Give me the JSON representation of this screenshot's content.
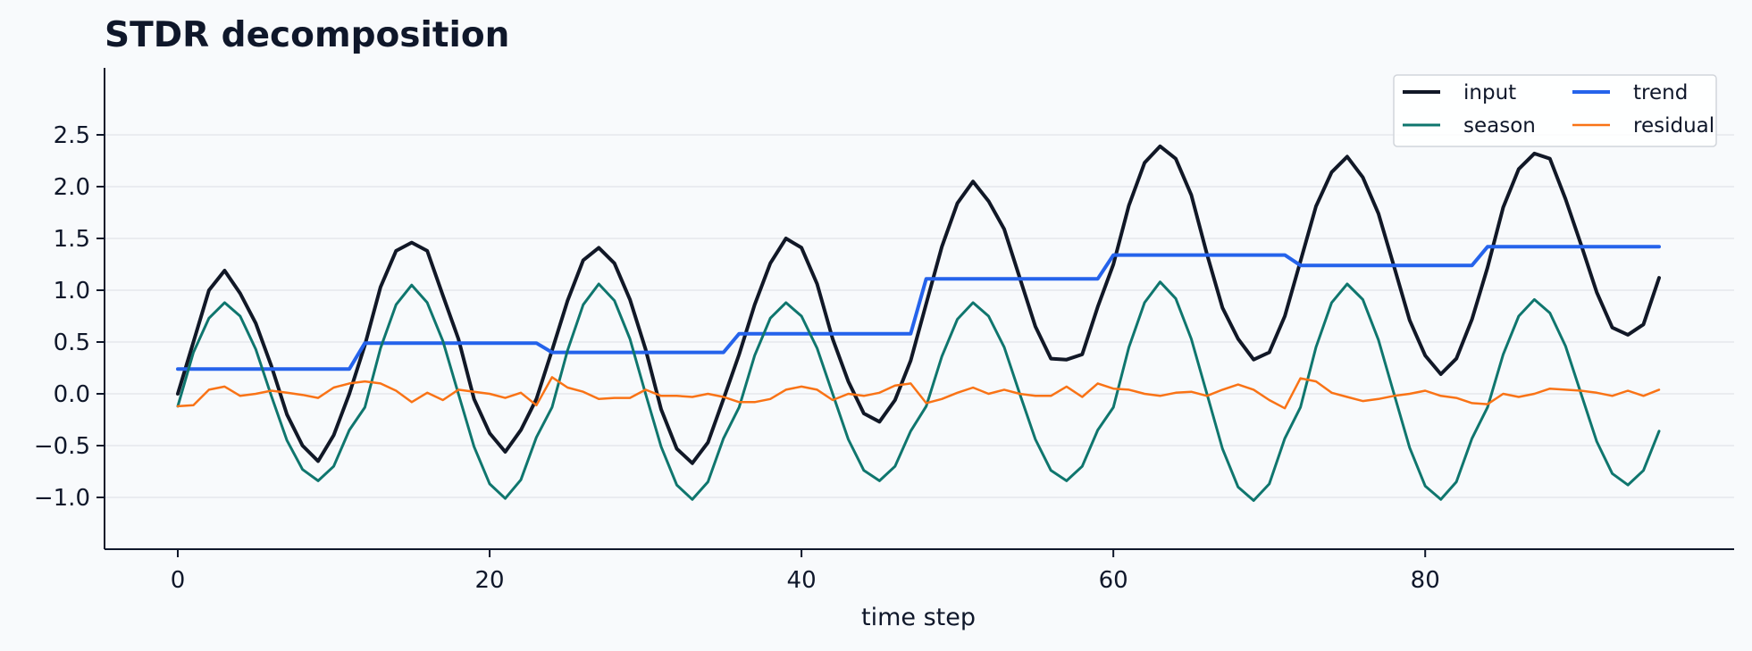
{
  "chart_data": {
    "type": "line",
    "title": "STDR decomposition",
    "xlabel": "time step",
    "ylabel": "",
    "xlim": [
      -4.75,
      99.75
    ],
    "ylim": [
      -1.2,
      2.55
    ],
    "xticks": [
      0,
      20,
      40,
      60,
      80
    ],
    "yticks": [
      -1.0,
      -0.5,
      0.0,
      0.5,
      1.0,
      1.5,
      2.0,
      2.5
    ],
    "xtick_labels": [
      "0",
      "20",
      "40",
      "60",
      "80"
    ],
    "ytick_labels": [
      "−1.0",
      "−0.5",
      "0.0",
      "0.5",
      "1.0",
      "1.5",
      "2.0",
      "2.5"
    ],
    "grid": "horizontal",
    "legend_placement": "top-right",
    "x_start": 0,
    "series": [
      {
        "name": "input",
        "color": "#111827",
        "values": [
          0.0,
          0.5,
          1.0,
          1.19,
          0.97,
          0.68,
          0.27,
          -0.2,
          -0.5,
          -0.65,
          -0.4,
          0.0,
          0.47,
          1.03,
          1.38,
          1.46,
          1.38,
          0.95,
          0.53,
          -0.05,
          -0.38,
          -0.56,
          -0.35,
          -0.05,
          0.42,
          0.9,
          1.29,
          1.41,
          1.26,
          0.91,
          0.43,
          -0.15,
          -0.53,
          -0.67,
          -0.47,
          -0.05,
          0.38,
          0.86,
          1.26,
          1.5,
          1.41,
          1.06,
          0.53,
          0.12,
          -0.19,
          -0.27,
          -0.06,
          0.32,
          0.87,
          1.42,
          1.84,
          2.05,
          1.86,
          1.59,
          1.12,
          0.65,
          0.34,
          0.33,
          0.38,
          0.84,
          1.25,
          1.82,
          2.23,
          2.39,
          2.27,
          1.92,
          1.35,
          0.83,
          0.53,
          0.33,
          0.4,
          0.75,
          1.28,
          1.81,
          2.14,
          2.29,
          2.09,
          1.74,
          1.23,
          0.71,
          0.37,
          0.19,
          0.34,
          0.72,
          1.22,
          1.8,
          2.17,
          2.32,
          2.27,
          1.88,
          1.44,
          0.98,
          0.64,
          0.57,
          0.67,
          1.12
        ]
      },
      {
        "name": "trend",
        "color": "#2563eb",
        "values": [
          0.24,
          0.24,
          0.24,
          0.24,
          0.24,
          0.24,
          0.24,
          0.24,
          0.24,
          0.24,
          0.24,
          0.24,
          0.49,
          0.49,
          0.49,
          0.49,
          0.49,
          0.49,
          0.49,
          0.49,
          0.49,
          0.49,
          0.49,
          0.49,
          0.4,
          0.4,
          0.4,
          0.4,
          0.4,
          0.4,
          0.4,
          0.4,
          0.4,
          0.4,
          0.4,
          0.4,
          0.58,
          0.58,
          0.58,
          0.58,
          0.58,
          0.58,
          0.58,
          0.58,
          0.58,
          0.58,
          0.58,
          0.58,
          1.11,
          1.11,
          1.11,
          1.11,
          1.11,
          1.11,
          1.11,
          1.11,
          1.11,
          1.11,
          1.11,
          1.11,
          1.34,
          1.34,
          1.34,
          1.34,
          1.34,
          1.34,
          1.34,
          1.34,
          1.34,
          1.34,
          1.34,
          1.34,
          1.24,
          1.24,
          1.24,
          1.24,
          1.24,
          1.24,
          1.24,
          1.24,
          1.24,
          1.24,
          1.24,
          1.24,
          1.42,
          1.42,
          1.42,
          1.42,
          1.42,
          1.42,
          1.42,
          1.42,
          1.42,
          1.42,
          1.42,
          1.42
        ]
      },
      {
        "name": "season",
        "color": "#0f766e",
        "values": [
          -0.12,
          0.4,
          0.73,
          0.88,
          0.75,
          0.43,
          -0.02,
          -0.45,
          -0.73,
          -0.84,
          -0.7,
          -0.35,
          -0.13,
          0.44,
          0.86,
          1.05,
          0.88,
          0.51,
          0.0,
          -0.51,
          -0.87,
          -1.01,
          -0.83,
          -0.42,
          -0.13,
          0.42,
          0.86,
          1.06,
          0.9,
          0.53,
          0.0,
          -0.51,
          -0.88,
          -1.02,
          -0.85,
          -0.43,
          -0.13,
          0.37,
          0.73,
          0.88,
          0.75,
          0.44,
          0.0,
          -0.44,
          -0.74,
          -0.84,
          -0.7,
          -0.36,
          -0.12,
          0.36,
          0.72,
          0.88,
          0.75,
          0.45,
          0.0,
          -0.44,
          -0.74,
          -0.84,
          -0.7,
          -0.35,
          -0.13,
          0.45,
          0.88,
          1.08,
          0.92,
          0.53,
          0.0,
          -0.53,
          -0.9,
          -1.03,
          -0.87,
          -0.43,
          -0.13,
          0.45,
          0.88,
          1.06,
          0.91,
          0.52,
          0.0,
          -0.52,
          -0.89,
          -1.02,
          -0.85,
          -0.43,
          -0.13,
          0.38,
          0.75,
          0.91,
          0.78,
          0.46,
          0.0,
          -0.46,
          -0.77,
          -0.88,
          -0.74,
          -0.36
        ]
      },
      {
        "name": "residual",
        "color": "#f97316",
        "values": [
          -0.12,
          -0.11,
          0.04,
          0.07,
          -0.02,
          0.0,
          0.03,
          0.01,
          -0.01,
          -0.04,
          0.06,
          0.1,
          0.12,
          0.1,
          0.03,
          -0.08,
          0.01,
          -0.06,
          0.04,
          0.02,
          0.0,
          -0.04,
          0.01,
          -0.11,
          0.16,
          0.06,
          0.02,
          -0.05,
          -0.04,
          -0.04,
          0.04,
          -0.02,
          -0.02,
          -0.03,
          0.0,
          -0.03,
          -0.08,
          -0.08,
          -0.05,
          0.04,
          0.07,
          0.04,
          -0.06,
          0.0,
          -0.02,
          0.01,
          0.08,
          0.1,
          -0.09,
          -0.05,
          0.01,
          0.06,
          0.0,
          0.04,
          0.0,
          -0.02,
          -0.02,
          0.07,
          -0.03,
          0.1,
          0.05,
          0.04,
          0.0,
          -0.02,
          0.01,
          0.02,
          -0.02,
          0.04,
          0.09,
          0.04,
          -0.06,
          -0.14,
          0.15,
          0.12,
          0.01,
          -0.03,
          -0.07,
          -0.05,
          -0.02,
          0.0,
          0.03,
          -0.02,
          -0.04,
          -0.09,
          -0.1,
          0.0,
          -0.03,
          0.0,
          0.05,
          0.04,
          0.03,
          0.01,
          -0.02,
          0.03,
          -0.02,
          0.04
        ]
      }
    ]
  }
}
